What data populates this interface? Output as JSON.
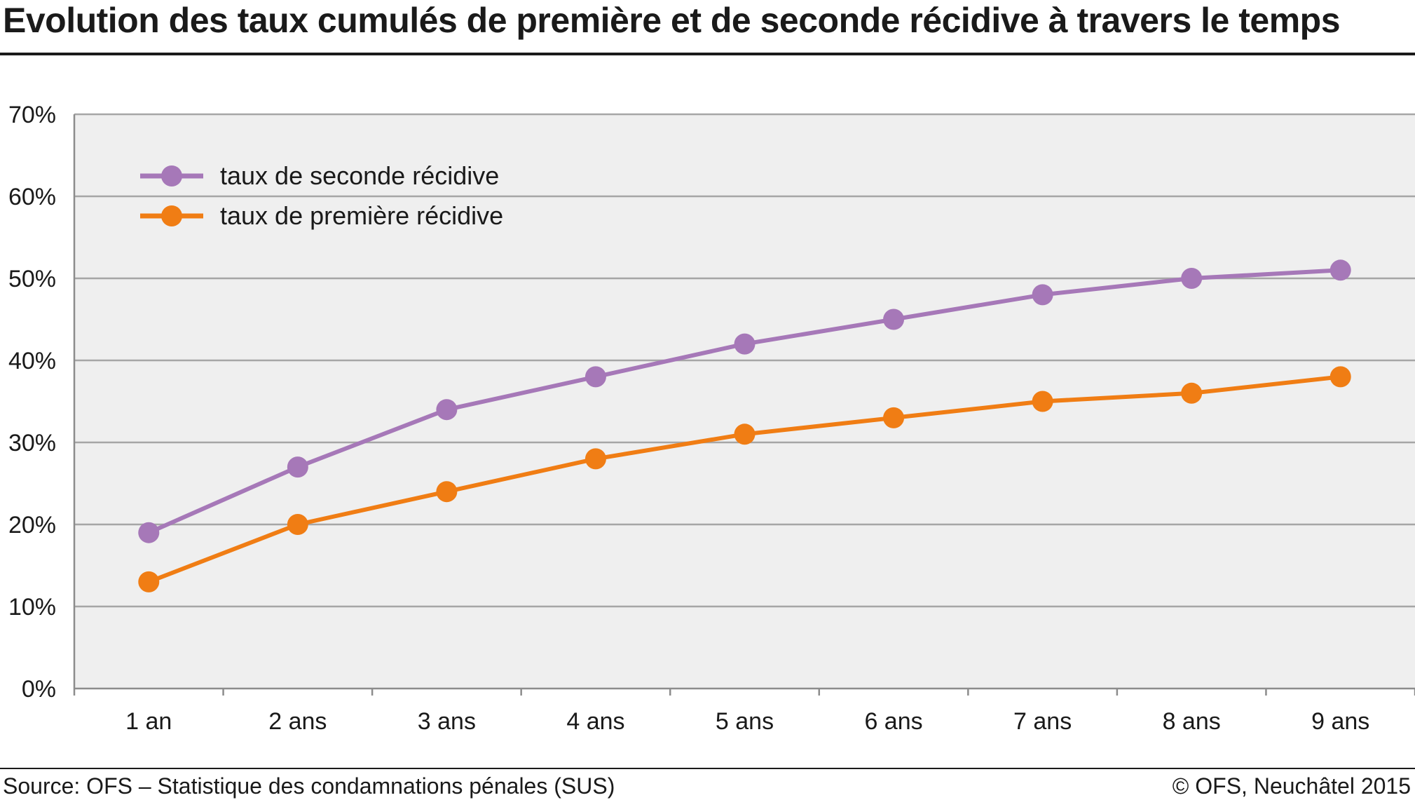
{
  "header": {
    "title": "Evolution des taux cumulés de première et de seconde récidive à travers le temps"
  },
  "footer": {
    "source": "Source: OFS – Statistique des condamnations pénales (SUS)",
    "copyright": "© OFS, Neuchâtel 2015"
  },
  "colors": {
    "plot_background": "#efefef",
    "gridline": "#a6a6a6",
    "seconde": "#a678b8",
    "premiere": "#f07d14"
  },
  "chart_data": {
    "type": "line",
    "title": "Evolution des taux cumulés de première et de seconde récidive à travers le temps",
    "xlabel": "",
    "ylabel": "",
    "categories": [
      "1 an",
      "2 ans",
      "3 ans",
      "4 ans",
      "5 ans",
      "6 ans",
      "7 ans",
      "8 ans",
      "9 ans"
    ],
    "ylim": [
      0,
      70
    ],
    "yticks": [
      0,
      10,
      20,
      30,
      40,
      50,
      60,
      70
    ],
    "ytick_labels": [
      "0%",
      "10%",
      "20%",
      "30%",
      "40%",
      "50%",
      "60%",
      "70%"
    ],
    "grid": true,
    "legend_position": "top-left",
    "series": [
      {
        "name": "taux de seconde récidive",
        "color": "#a678b8",
        "values": [
          19,
          27,
          34,
          38,
          42,
          45,
          48,
          50,
          51
        ]
      },
      {
        "name": "taux de première récidive",
        "color": "#f07d14",
        "values": [
          13,
          20,
          24,
          28,
          31,
          33,
          35,
          36,
          38
        ]
      }
    ]
  }
}
